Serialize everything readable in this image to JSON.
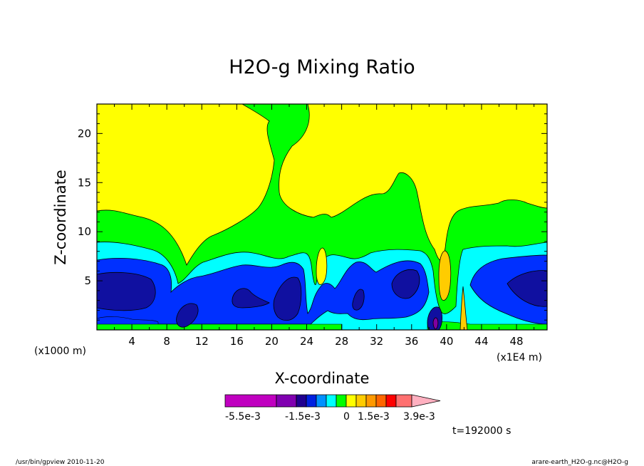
{
  "chart_data": {
    "type": "heatmap",
    "title": "H2O-g Mixing Ratio",
    "xlabel": "X-coordinate",
    "ylabel": "Z-coordinate",
    "x_unit_left": "(x1000 m)",
    "x_unit_right": "(x1E4 m)",
    "xlim": [
      0,
      51.5
    ],
    "ylim": [
      0,
      23
    ],
    "x_ticks": [
      4,
      8,
      12,
      16,
      20,
      24,
      28,
      32,
      36,
      40,
      44,
      48
    ],
    "y_ticks": [
      5,
      10,
      15,
      20
    ],
    "levels": [
      -0.0055,
      -0.0045,
      -0.0035,
      -0.0025,
      -0.0015,
      -0.001,
      -0.0005,
      0,
      0.0005,
      0.001,
      0.0015,
      0.002,
      0.0025,
      0.003,
      0.0039
    ],
    "colorbar": {
      "colors": [
        "#c000c0",
        "#8000b0",
        "#200090",
        "#0020e0",
        "#0090ff",
        "#00ffff",
        "#00ff00",
        "#ffff00",
        "#ffcc00",
        "#ff9900",
        "#ff6600",
        "#ff0000",
        "#ff7070",
        "#ffb0c0"
      ],
      "labels": [
        "-5.5e-3",
        "-1.5e-3",
        "0",
        "1.5e-3",
        "3.9e-3"
      ]
    },
    "regions": {
      "green": "green",
      "yellow": "yellow",
      "cyan": "cyan",
      "blue": "blue",
      "navy": "navy",
      "orange": "orange",
      "purple": "purple"
    },
    "time_label": "t=192000 s"
  },
  "footer": {
    "left": "/usr/bin/gpview  2010-11-20",
    "right": "arare-earth_H2O-g.nc@H2O-g"
  },
  "colors": {
    "yellow": "#ffff00",
    "green": "#00ff00",
    "cyan": "#00ffff",
    "blue": "#0030ff",
    "navy": "#1010a0",
    "orange": "#ffcc00",
    "purple": "#8000a0"
  }
}
